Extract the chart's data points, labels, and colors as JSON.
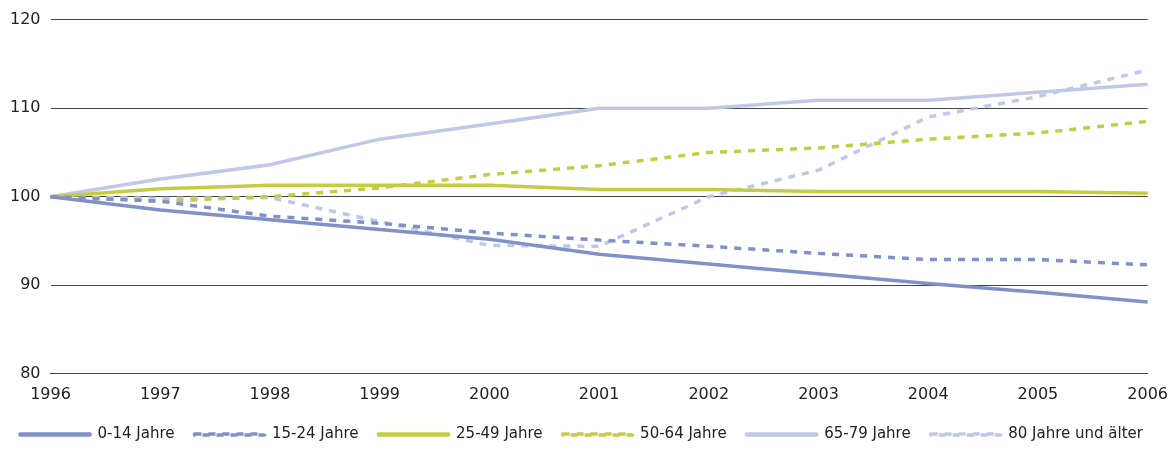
{
  "chart_data": {
    "type": "line",
    "categories": [
      "1996",
      "1997",
      "1998",
      "1999",
      "2000",
      "2001",
      "2002",
      "2003",
      "2004",
      "2005",
      "2006"
    ],
    "ylim": [
      80,
      120
    ],
    "yticks": [
      80,
      90,
      100,
      110,
      120
    ],
    "grid": "y",
    "legend": "bottom",
    "marker": "none",
    "series": [
      {
        "name": "0-14 Jahre",
        "color": "#8090c8",
        "line_style": "solid",
        "values": [
          100,
          98.5,
          97.4,
          96.3,
          95.2,
          93.5,
          92.4,
          91.3,
          90.2,
          89.2,
          88.1
        ]
      },
      {
        "name": "15-24 Jahre",
        "color": "#8090c8",
        "line_style": "dashed",
        "values": [
          100,
          99.5,
          97.8,
          97,
          95.9,
          95.1,
          94.4,
          93.6,
          92.9,
          92.9,
          92.3
        ]
      },
      {
        "name": "25-49 Jahre",
        "color": "#c4cc44",
        "line_style": "solid",
        "values": [
          100,
          100.9,
          101.3,
          101.3,
          101.3,
          100.8,
          100.8,
          100.6,
          100.6,
          100.6,
          100.4
        ]
      },
      {
        "name": "50-64 Jahre",
        "color": "#c4cc44",
        "line_style": "dashed",
        "values": [
          100,
          99.5,
          100,
          101,
          102.5,
          103.5,
          105,
          105.5,
          106.5,
          107.2,
          108.5
        ]
      },
      {
        "name": "65-79 Jahre",
        "color": "#c0c8e8",
        "line_style": "solid",
        "values": [
          100,
          102,
          103.6,
          106.5,
          108.2,
          110,
          110,
          110.9,
          110.9,
          111.8,
          112.7
        ]
      },
      {
        "name": "80 Jahre und älter",
        "color": "#c0c8e8",
        "line_style": "dashed",
        "values": [
          100,
          99.8,
          99.9,
          97.2,
          94.5,
          94.4,
          100,
          103,
          109,
          111.3,
          114.3
        ]
      }
    ]
  }
}
